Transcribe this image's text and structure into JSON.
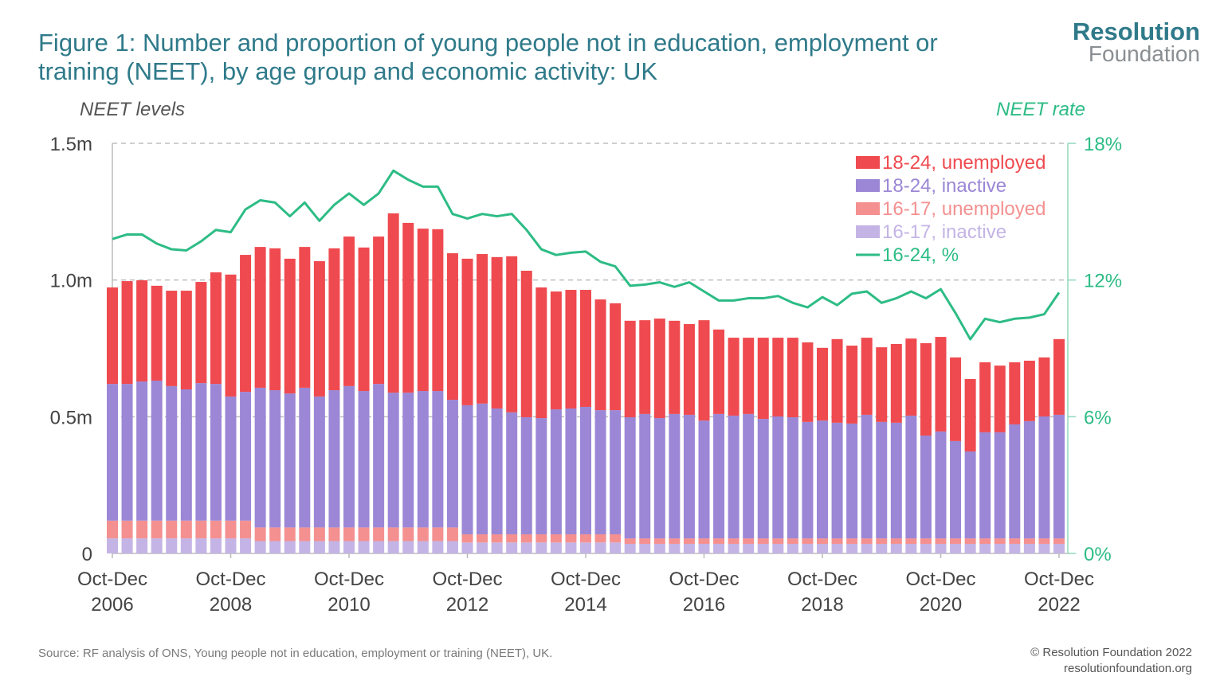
{
  "title": "Figure 1: Number and proportion of young people not in education, employment or training (NEET), by age group and economic activity: UK",
  "logo": {
    "line1": "Resolution",
    "line2": "Foundation"
  },
  "source": "Source: RF analysis of ONS, Young people not in education, employment or training (NEET), UK.",
  "copyright": {
    "line1": "© Resolution Foundation 2022",
    "line2": "resolutionfoundation.org"
  },
  "colors": {
    "title": "#2f7a8a",
    "u18": "#ef4a4f",
    "i18": "#9b87d6",
    "u16": "#f49090",
    "l16": "#c4b4e6",
    "rate": "#2dbc85"
  },
  "chart_data": {
    "type": "bar",
    "stacked": true,
    "ylabel": "NEET levels",
    "y2label": "NEET rate",
    "ylim": [
      0,
      1.5
    ],
    "y2lim": [
      0,
      18
    ],
    "y_ticks": [
      {
        "v": 0,
        "label": "0"
      },
      {
        "v": 0.5,
        "label": "0.5m"
      },
      {
        "v": 1.0,
        "label": "1.0m"
      },
      {
        "v": 1.5,
        "label": "1.5m"
      }
    ],
    "y2_ticks": [
      {
        "v": 0,
        "label": "0%"
      },
      {
        "v": 6,
        "label": "6%"
      },
      {
        "v": 12,
        "label": "12%"
      },
      {
        "v": 18,
        "label": "18%"
      }
    ],
    "grid": "horizontal dashed",
    "legend_placement": "top-right",
    "x_ticks": [
      {
        "index": 0,
        "label": "Oct-Dec",
        "year": "2006"
      },
      {
        "index": 8,
        "label": "Oct-Dec",
        "year": "2008"
      },
      {
        "index": 16,
        "label": "Oct-Dec",
        "year": "2010"
      },
      {
        "index": 24,
        "label": "Oct-Dec",
        "year": "2012"
      },
      {
        "index": 32,
        "label": "Oct-Dec",
        "year": "2014"
      },
      {
        "index": 40,
        "label": "Oct-Dec",
        "year": "2016"
      },
      {
        "index": 48,
        "label": "Oct-Dec",
        "year": "2018"
      },
      {
        "index": 56,
        "label": "Oct-Dec",
        "year": "2020"
      },
      {
        "index": 64,
        "label": "Oct-Dec",
        "year": "2022"
      }
    ],
    "categories": [
      "Oct-Dec 2006",
      "Jan-Mar 2007",
      "Apr-Jun 2007",
      "Jul-Sep 2007",
      "Oct-Dec 2007",
      "Jan-Mar 2008",
      "Apr-Jun 2008",
      "Jul-Sep 2008",
      "Oct-Dec 2008",
      "Jan-Mar 2009",
      "Apr-Jun 2009",
      "Jul-Sep 2009",
      "Oct-Dec 2009",
      "Jan-Mar 2010",
      "Apr-Jun 2010",
      "Jul-Sep 2010",
      "Oct-Dec 2010",
      "Jan-Mar 2011",
      "Apr-Jun 2011",
      "Jul-Sep 2011",
      "Oct-Dec 2011",
      "Jan-Mar 2012",
      "Apr-Jun 2012",
      "Jul-Sep 2012",
      "Oct-Dec 2012",
      "Jan-Mar 2013",
      "Apr-Jun 2013",
      "Jul-Sep 2013",
      "Oct-Dec 2013",
      "Jan-Mar 2014",
      "Apr-Jun 2014",
      "Jul-Sep 2014",
      "Oct-Dec 2014",
      "Jan-Mar 2015",
      "Apr-Jun 2015",
      "Jul-Sep 2015",
      "Oct-Dec 2015",
      "Jan-Mar 2016",
      "Apr-Jun 2016",
      "Jul-Sep 2016",
      "Oct-Dec 2016",
      "Jan-Mar 2017",
      "Apr-Jun 2017",
      "Jul-Sep 2017",
      "Oct-Dec 2017",
      "Jan-Mar 2018",
      "Apr-Jun 2018",
      "Jul-Sep 2018",
      "Oct-Dec 2018",
      "Jan-Mar 2019",
      "Apr-Jun 2019",
      "Jul-Sep 2019",
      "Oct-Dec 2019",
      "Jan-Mar 2020",
      "Apr-Jun 2020",
      "Jul-Sep 2020",
      "Oct-Dec 2020",
      "Jan-Mar 2021",
      "Apr-Jun 2021",
      "Jul-Sep 2021",
      "Oct-Dec 2021",
      "Jan-Mar 2022",
      "Apr-Jun 2022",
      "Jul-Sep 2022",
      "Oct-Dec 2022"
    ],
    "series": [
      {
        "name": "16-17, inactive",
        "key": "l16",
        "axis": "left",
        "values": [
          0.055,
          0.055,
          0.055,
          0.055,
          0.055,
          0.055,
          0.055,
          0.055,
          0.055,
          0.055,
          0.045,
          0.045,
          0.045,
          0.045,
          0.045,
          0.045,
          0.045,
          0.045,
          0.045,
          0.045,
          0.045,
          0.045,
          0.045,
          0.045,
          0.04,
          0.04,
          0.04,
          0.04,
          0.04,
          0.04,
          0.04,
          0.04,
          0.04,
          0.04,
          0.04,
          0.035,
          0.035,
          0.035,
          0.035,
          0.035,
          0.035,
          0.035,
          0.035,
          0.035,
          0.035,
          0.035,
          0.035,
          0.035,
          0.035,
          0.035,
          0.035,
          0.035,
          0.035,
          0.035,
          0.035,
          0.035,
          0.035,
          0.035,
          0.035,
          0.035,
          0.035,
          0.035,
          0.035,
          0.035,
          0.035
        ]
      },
      {
        "name": "16-17, unemployed",
        "key": "u16",
        "axis": "left",
        "values": [
          0.065,
          0.065,
          0.065,
          0.065,
          0.065,
          0.065,
          0.065,
          0.065,
          0.065,
          0.065,
          0.05,
          0.05,
          0.05,
          0.05,
          0.05,
          0.05,
          0.05,
          0.05,
          0.05,
          0.05,
          0.05,
          0.05,
          0.05,
          0.05,
          0.03,
          0.03,
          0.03,
          0.03,
          0.03,
          0.03,
          0.03,
          0.03,
          0.03,
          0.03,
          0.03,
          0.02,
          0.02,
          0.02,
          0.02,
          0.02,
          0.02,
          0.02,
          0.02,
          0.02,
          0.02,
          0.02,
          0.02,
          0.02,
          0.02,
          0.02,
          0.02,
          0.02,
          0.02,
          0.02,
          0.02,
          0.02,
          0.02,
          0.02,
          0.02,
          0.02,
          0.02,
          0.02,
          0.02,
          0.02,
          0.02
        ]
      },
      {
        "name": "18-24, inactive",
        "key": "i18",
        "axis": "left",
        "values": [
          0.5,
          0.5,
          0.509,
          0.512,
          0.492,
          0.48,
          0.503,
          0.5,
          0.454,
          0.471,
          0.511,
          0.502,
          0.49,
          0.511,
          0.479,
          0.502,
          0.517,
          0.499,
          0.525,
          0.493,
          0.493,
          0.499,
          0.499,
          0.467,
          0.472,
          0.478,
          0.46,
          0.446,
          0.428,
          0.425,
          0.457,
          0.46,
          0.466,
          0.454,
          0.454,
          0.443,
          0.455,
          0.44,
          0.455,
          0.452,
          0.431,
          0.455,
          0.449,
          0.455,
          0.437,
          0.446,
          0.443,
          0.426,
          0.431,
          0.423,
          0.42,
          0.452,
          0.426,
          0.423,
          0.449,
          0.376,
          0.391,
          0.356,
          0.318,
          0.388,
          0.388,
          0.417,
          0.429,
          0.446,
          0.452
        ]
      },
      {
        "name": "18-24, unemployed",
        "key": "u18",
        "axis": "left",
        "values": [
          0.353,
          0.376,
          0.37,
          0.347,
          0.349,
          0.361,
          0.37,
          0.408,
          0.446,
          0.501,
          0.515,
          0.519,
          0.493,
          0.515,
          0.495,
          0.519,
          0.547,
          0.525,
          0.539,
          0.656,
          0.621,
          0.594,
          0.592,
          0.536,
          0.536,
          0.547,
          0.554,
          0.571,
          0.536,
          0.478,
          0.431,
          0.434,
          0.428,
          0.405,
          0.391,
          0.353,
          0.343,
          0.364,
          0.341,
          0.332,
          0.367,
          0.309,
          0.285,
          0.279,
          0.297,
          0.288,
          0.291,
          0.291,
          0.266,
          0.306,
          0.285,
          0.282,
          0.273,
          0.288,
          0.282,
          0.338,
          0.346,
          0.306,
          0.265,
          0.256,
          0.244,
          0.227,
          0.221,
          0.216,
          0.277
        ]
      },
      {
        "name": "16-24, %",
        "key": "rate",
        "axis": "right",
        "type": "line",
        "values": [
          13.8,
          14.0,
          14.0,
          13.6,
          13.35,
          13.3,
          13.7,
          14.2,
          14.1,
          15.1,
          15.5,
          15.4,
          14.8,
          15.4,
          14.6,
          15.3,
          15.8,
          15.3,
          15.8,
          16.8,
          16.4,
          16.1,
          16.1,
          14.9,
          14.7,
          14.9,
          14.8,
          14.9,
          14.2,
          13.35,
          13.1,
          13.2,
          13.25,
          12.8,
          12.6,
          11.75,
          11.8,
          11.9,
          11.7,
          11.9,
          11.5,
          11.1,
          11.1,
          11.2,
          11.2,
          11.3,
          11.0,
          10.8,
          11.25,
          10.9,
          11.4,
          11.5,
          11.0,
          11.2,
          11.5,
          11.2,
          11.6,
          10.55,
          9.4,
          10.3,
          10.15,
          10.3,
          10.35,
          10.5,
          11.45
        ]
      }
    ],
    "legend": [
      {
        "label": "18-24, unemployed",
        "key": "u18",
        "marker": "box"
      },
      {
        "label": "18-24, inactive",
        "key": "i18",
        "marker": "box"
      },
      {
        "label": "16-17, unemployed",
        "key": "u16",
        "marker": "box"
      },
      {
        "label": "16-17, inactive",
        "key": "l16",
        "marker": "box"
      },
      {
        "label": "16-24, %",
        "key": "rate",
        "marker": "line"
      }
    ]
  }
}
